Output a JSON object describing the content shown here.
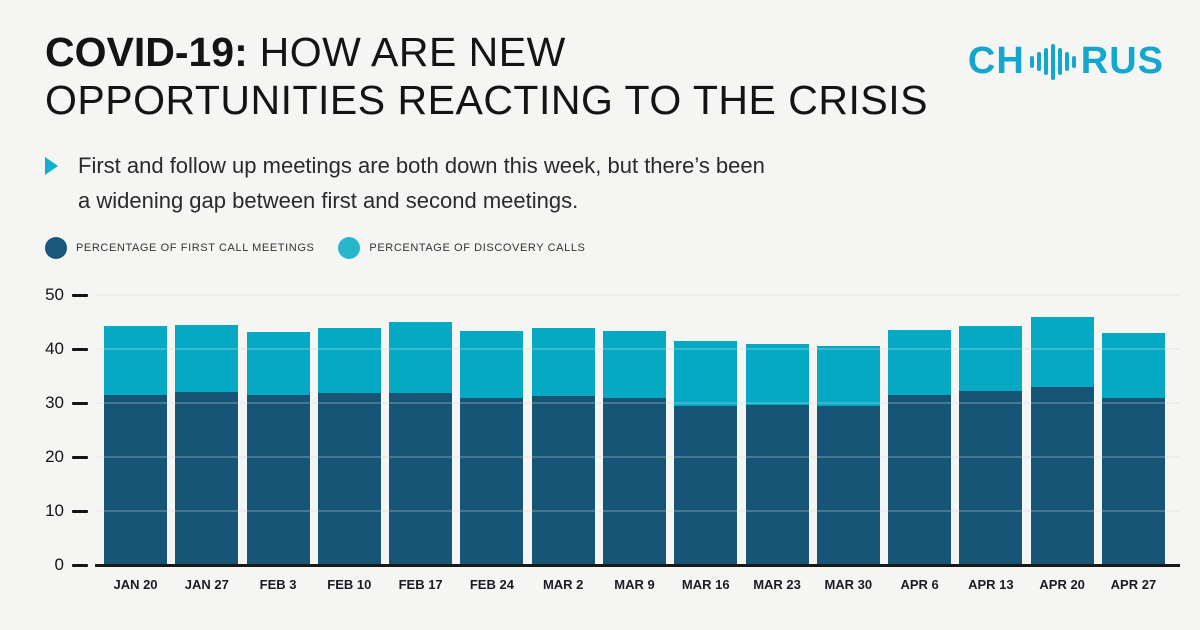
{
  "header": {
    "title": {
      "bold": "COVID-19:",
      "line1_rest": " HOW ARE NEW",
      "line2": "OPPORTUNITIES REACTING TO THE CRISIS"
    },
    "logo": {
      "text_left": "CH",
      "text_right": "RUS",
      "icon": "waveform-icon",
      "color": "#14a7ce"
    }
  },
  "subtitle": {
    "bullet_color": "#0fb0ce",
    "line1": "First and follow up meetings are both down this week, but there’s been",
    "line2": "a widening gap between first and second meetings."
  },
  "legend": {
    "items": [
      {
        "label": "PERCENTAGE OF FIRST CALL MEETINGS",
        "color": "#1b567c"
      },
      {
        "label": "PERCENTAGE OF DISCOVERY CALLS",
        "color": "#29b6cd"
      }
    ]
  },
  "chart_data": {
    "type": "bar",
    "stacked": true,
    "title": "COVID-19: How are new opportunities reacting to the crisis",
    "categories": [
      "JAN 20",
      "JAN 27",
      "FEB 3",
      "FEB 10",
      "FEB 17",
      "FEB 24",
      "MAR 2",
      "MAR 9",
      "MAR 16",
      "MAR 23",
      "MAR 30",
      "APR 6",
      "APR 13",
      "APR 20",
      "APR 27"
    ],
    "series": [
      {
        "name": "PERCENTAGE OF FIRST CALL MEETINGS",
        "color": "#175577",
        "values": [
          31.5,
          32.0,
          31.5,
          31.8,
          31.8,
          30.9,
          31.3,
          31.0,
          29.5,
          29.7,
          29.5,
          31.4,
          32.2,
          33.0,
          30.9
        ]
      },
      {
        "name": "PERCENTAGE OF DISCOVERY CALLS",
        "color": "#05a9c3",
        "values": [
          12.7,
          12.5,
          11.7,
          12.0,
          13.2,
          12.4,
          12.6,
          12.3,
          11.9,
          11.3,
          11.0,
          12.2,
          12.1,
          12.9,
          12.1
        ]
      }
    ],
    "ylim": [
      0,
      50
    ],
    "yticks": [
      0,
      10,
      20,
      30,
      40,
      50
    ],
    "grid": true,
    "legend_position": "top-left",
    "xlabel": "",
    "ylabel": ""
  }
}
